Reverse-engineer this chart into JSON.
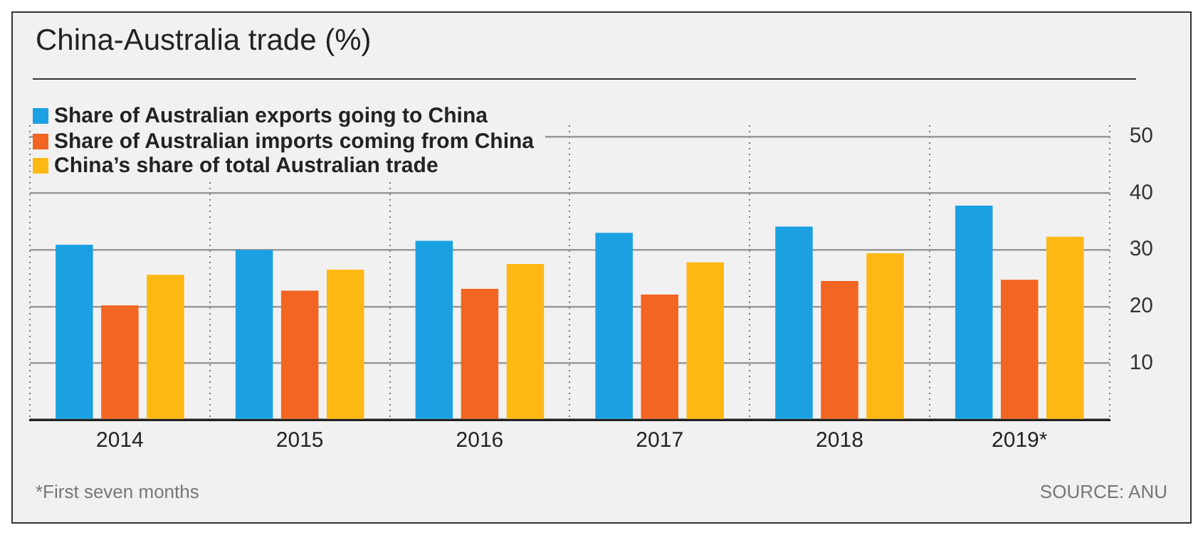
{
  "chart_data": {
    "type": "bar",
    "title": "China-Australia trade (%)",
    "categories": [
      "2014",
      "2015",
      "2016",
      "2017",
      "2018",
      "2019*"
    ],
    "series": [
      {
        "name": "Share of Australian exports going to China",
        "color": "#1ba1e2",
        "values": [
          30.9,
          30.0,
          31.6,
          33.0,
          34.1,
          37.8
        ]
      },
      {
        "name": "Share of Australian imports coming from China",
        "color": "#f26522",
        "values": [
          20.2,
          22.8,
          23.1,
          22.1,
          24.5,
          24.7
        ]
      },
      {
        "name": "China’s share of total Australian trade",
        "color": "#fdb813",
        "values": [
          25.6,
          26.5,
          27.5,
          27.8,
          29.4,
          32.3
        ]
      }
    ],
    "ylim": [
      0,
      52
    ],
    "yticks": [
      {
        "value": 0,
        "label": null
      },
      10,
      20,
      30,
      40,
      50
    ],
    "grid": true,
    "legend": "top left",
    "annotations": [
      "*First seven months",
      "SOURCE: ANU"
    ]
  }
}
